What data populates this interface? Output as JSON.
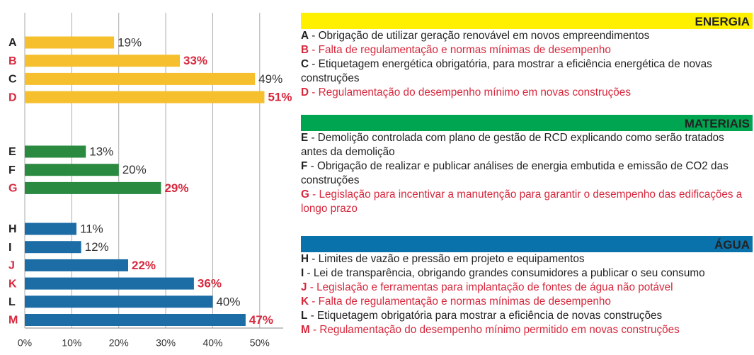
{
  "chart_data": {
    "type": "bar",
    "orientation": "horizontal",
    "xlim": [
      0,
      55
    ],
    "xticks": [
      {
        "value": 0,
        "label": "0%"
      },
      {
        "value": 10,
        "label": "10%"
      },
      {
        "value": 20,
        "label": "20%"
      },
      {
        "value": 30,
        "label": "30%"
      },
      {
        "value": 40,
        "label": "40%"
      },
      {
        "value": 50,
        "label": "50%"
      }
    ],
    "grid": true,
    "highlight_color": "#d7283d",
    "series": [
      {
        "name": "ENERGIA",
        "color": "#f6bf2d",
        "header_color": "#fff000",
        "categories": [
          "A",
          "B",
          "C",
          "D"
        ],
        "values": [
          19,
          33,
          49,
          51
        ],
        "value_labels": [
          "19%",
          "33%",
          "49%",
          "51%"
        ],
        "highlight": [
          false,
          true,
          false,
          true
        ],
        "descriptions": [
          "- Obrigação de utilizar geração renovável em novos empreendimentos",
          "- Falta de regulamentação e normas mínimas de desempenho",
          "- Etiquetagem energética obrigatória, para mostrar a eficiência energética de novas construções",
          "- Regulamentação do desempenho mínimo em novas construções"
        ]
      },
      {
        "name": "MATERIAIS",
        "color": "#2a8a40",
        "header_color": "#00a551",
        "categories": [
          "E",
          "F",
          "G"
        ],
        "values": [
          13,
          20,
          29
        ],
        "value_labels": [
          "13%",
          "20%",
          "29%"
        ],
        "highlight": [
          false,
          false,
          true
        ],
        "descriptions": [
          "- Demolição controlada com plano de gestão de RCD explicando como serão tratados antes da demolição",
          "- Obrigação de realizar e publicar análises de energia embutida e emissão de CO2 das construções",
          "- Legislação para incentivar a manutenção para garantir o desempenho das edificações a longo prazo"
        ]
      },
      {
        "name": "ÁGUA",
        "color": "#1c6ca6",
        "header_color": "#0a72aa",
        "categories": [
          "H",
          "I",
          "J",
          "K",
          "L",
          "M"
        ],
        "values": [
          11,
          12,
          22,
          36,
          40,
          47
        ],
        "value_labels": [
          "11%",
          "12%",
          "22%",
          "36%",
          "40%",
          "47%"
        ],
        "highlight": [
          false,
          false,
          true,
          true,
          false,
          true
        ],
        "descriptions": [
          "- Limites de vazão e pressão em projeto e equipamentos",
          "- Lei de transparência, obrigando grandes consumidores a publicar o seu consumo",
          "- Legislação e ferramentas para implantação de fontes de água não potável",
          "- Falta de regulamentação e normas mínimas de desempenho",
          "- Etiquetagem obrigatória para mostrar a eficiência de novas construções",
          "- Regulamentação do desempenho mínimo permitido em novas construções"
        ]
      }
    ]
  }
}
